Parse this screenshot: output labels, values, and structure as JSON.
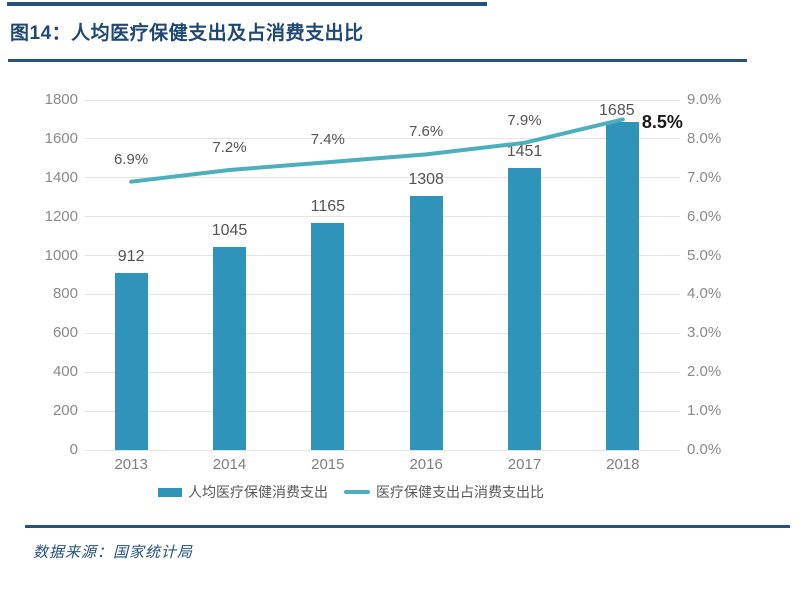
{
  "header": {
    "title": "图14：人均医疗保健支出及占消费支出比"
  },
  "footer": {
    "source_label": "数据来源：国家统计局"
  },
  "colors": {
    "accent_navy": "#27517E",
    "title_text": "#1F4875",
    "bar_fill": "#3094BA",
    "line_stroke": "#4DAEBC",
    "grid_line": "#E4E4E4",
    "axis_tick_text": "#8A8A8A",
    "data_label_text": "#545454",
    "emphasis_label_text": "#1A1A1A",
    "legend_text": "#595959"
  },
  "chart_data": {
    "type": "bar+line combo",
    "title": "图14：人均医疗保健支出及占消费支出比",
    "categories": [
      "2013",
      "2014",
      "2015",
      "2016",
      "2017",
      "2018"
    ],
    "series": [
      {
        "name": "人均医疗保健消费支出",
        "type": "bar",
        "axis": "left",
        "values": [
          912,
          1045,
          1165,
          1308,
          1451,
          1685
        ],
        "data_labels": [
          "912",
          "1045",
          "1165",
          "1308",
          "1451",
          "1685"
        ]
      },
      {
        "name": "医疗保健支出占消费支出比",
        "type": "line",
        "axis": "right",
        "values": [
          6.9,
          7.2,
          7.4,
          7.6,
          7.9,
          8.5
        ],
        "data_labels": [
          "6.9%",
          "7.2%",
          "7.4%",
          "7.6%",
          "7.9%",
          "8.5%"
        ]
      }
    ],
    "left_axis": {
      "min": 0,
      "max": 1800,
      "ticks": [
        "0",
        "200",
        "400",
        "600",
        "800",
        "1000",
        "1200",
        "1400",
        "1600",
        "1800"
      ]
    },
    "right_axis": {
      "min": 0,
      "max": 9,
      "ticks": [
        "0.0%",
        "1.0%",
        "2.0%",
        "3.0%",
        "4.0%",
        "5.0%",
        "6.0%",
        "7.0%",
        "8.0%",
        "9.0%"
      ]
    },
    "legend": {
      "position": "bottom",
      "items": [
        {
          "label": "人均医疗保健消费支出",
          "marker": "bar"
        },
        {
          "label": "医疗保健支出占消费支出比",
          "marker": "line"
        }
      ]
    },
    "grid": "horizontal gridlines only"
  }
}
